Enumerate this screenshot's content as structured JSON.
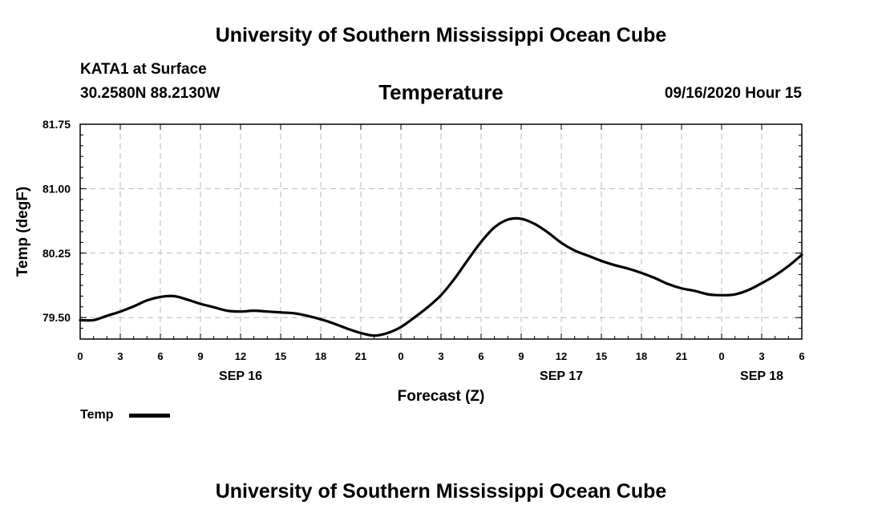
{
  "header": {
    "title": "University of Southern Mississippi Ocean Cube",
    "station": "KATA1 at Surface",
    "coordinates": "30.2580N 88.2130W",
    "variable": "Temperature",
    "datetime": "09/16/2020 Hour 15"
  },
  "footer": {
    "title": "University of Southern Mississippi Ocean Cube"
  },
  "legend": {
    "label": "Temp",
    "color": "#000000"
  },
  "chart_data": {
    "type": "line",
    "title": "Temperature",
    "xlabel": "Forecast (Z)",
    "ylabel": "Temp (degF)",
    "xlim": [
      0,
      54
    ],
    "ylim": [
      79.25,
      81.75
    ],
    "yticks": [
      79.5,
      80.25,
      81.0,
      81.75
    ],
    "ytick_labels": [
      "79.50",
      "80.25",
      "81.00",
      "81.75"
    ],
    "xticks": [
      0,
      3,
      6,
      9,
      12,
      15,
      18,
      21,
      24,
      27,
      30,
      33,
      36,
      39,
      42,
      45,
      48,
      51,
      54
    ],
    "xtick_labels": [
      "0",
      "3",
      "6",
      "9",
      "12",
      "15",
      "18",
      "21",
      "0",
      "3",
      "6",
      "9",
      "12",
      "15",
      "18",
      "21",
      "0",
      "3",
      "6"
    ],
    "day_labels": [
      {
        "x": 12,
        "label": "SEP 16"
      },
      {
        "x": 36,
        "label": "SEP 17"
      },
      {
        "x": 51,
        "label": "SEP 18"
      }
    ],
    "grid": true,
    "legend_position": "bottom-left",
    "series": [
      {
        "name": "Temp",
        "color": "#000000",
        "x": [
          0,
          1,
          2,
          3,
          4,
          5,
          6,
          7,
          8,
          9,
          10,
          11,
          12,
          13,
          14,
          15,
          16,
          17,
          18,
          19,
          20,
          21,
          22,
          23,
          24,
          25,
          26,
          27,
          28,
          29,
          30,
          31,
          32,
          33,
          34,
          35,
          36,
          37,
          38,
          39,
          40,
          41,
          42,
          43,
          44,
          45,
          46,
          47,
          48,
          49,
          50,
          51,
          52,
          53,
          54
        ],
        "values": [
          79.47,
          79.47,
          79.52,
          79.57,
          79.63,
          79.7,
          79.74,
          79.75,
          79.71,
          79.66,
          79.62,
          79.58,
          79.57,
          79.58,
          79.57,
          79.56,
          79.55,
          79.52,
          79.48,
          79.43,
          79.37,
          79.32,
          79.29,
          79.32,
          79.39,
          79.5,
          79.62,
          79.76,
          79.95,
          80.17,
          80.38,
          80.55,
          80.64,
          80.65,
          80.59,
          80.49,
          80.37,
          80.28,
          80.22,
          80.16,
          80.11,
          80.07,
          80.02,
          79.96,
          79.89,
          79.84,
          79.81,
          79.77,
          79.76,
          79.77,
          79.82,
          79.9,
          79.99,
          80.1,
          80.23
        ]
      }
    ]
  }
}
